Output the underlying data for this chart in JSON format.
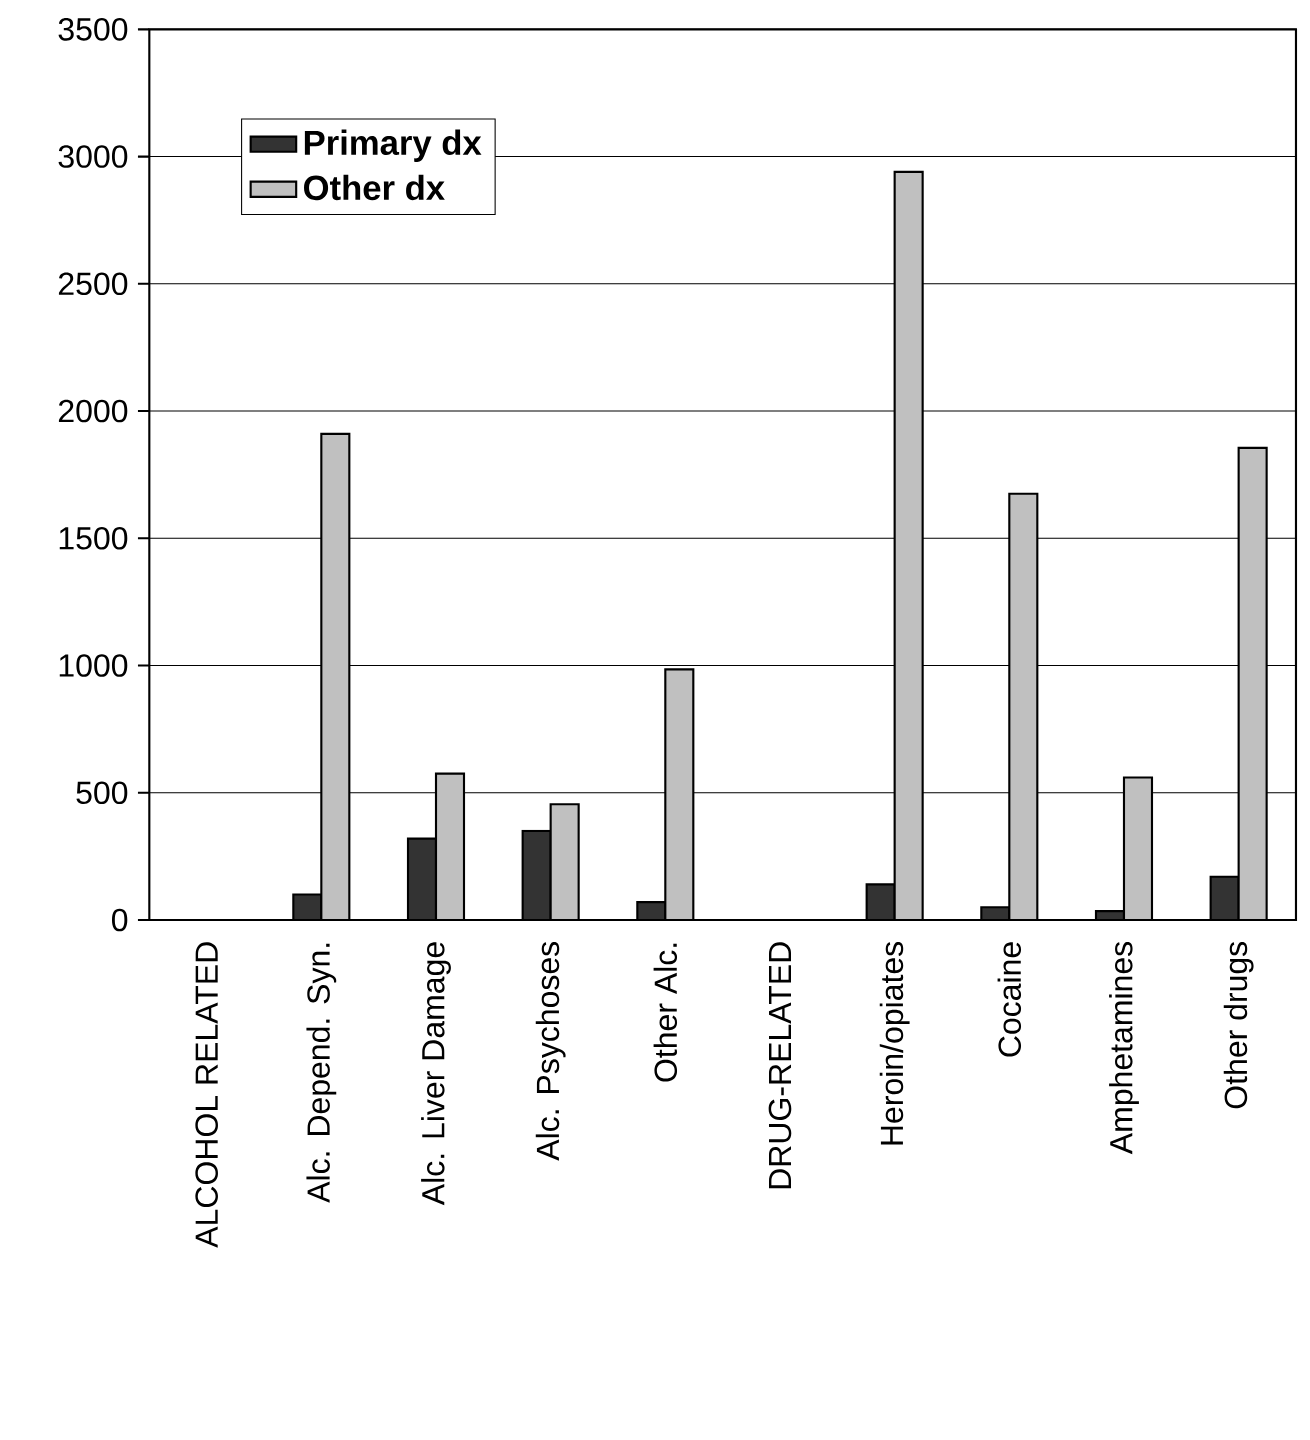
{
  "chart_data": {
    "type": "bar",
    "categories": [
      "ALCOHOL RELATED",
      "Alc. Depend. Syn.",
      "Alc. Liver Damage",
      "Alc. Psychoses",
      "Other Alc.",
      "DRUG-RELATED",
      "Heroin/opiates",
      "Cocaine",
      "Amphetamines",
      "Other drugs"
    ],
    "series": [
      {
        "name": "Primary dx",
        "color": "#333333",
        "values": [
          null,
          100,
          320,
          350,
          70,
          null,
          140,
          50,
          35,
          170
        ]
      },
      {
        "name": "Other dx",
        "color": "#c0c0c0",
        "values": [
          null,
          1910,
          575,
          455,
          985,
          null,
          2940,
          1675,
          560,
          1855
        ]
      }
    ],
    "ylim": [
      0,
      3500
    ],
    "yticks": [
      0,
      500,
      1000,
      1500,
      2000,
      2500,
      3000,
      3500
    ],
    "grid": "y",
    "legend": "top left"
  }
}
